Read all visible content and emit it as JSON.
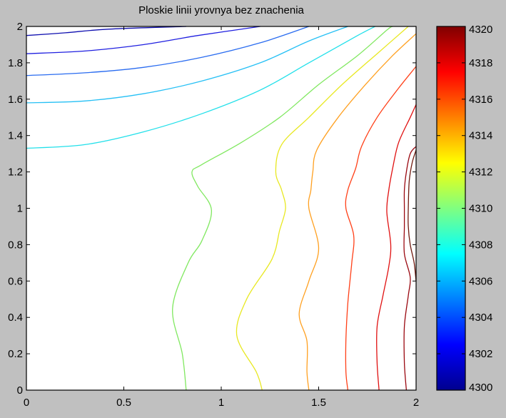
{
  "chart_data": {
    "type": "contour",
    "title": "Ploskie linii yrovnya bez znachenia",
    "xlim": [
      0,
      2
    ],
    "ylim": [
      0,
      2
    ],
    "x_ticks": [
      0,
      0.5,
      1,
      1.5,
      2
    ],
    "x_tick_labels": [
      "0",
      "0.5",
      "1",
      "1.5",
      "2"
    ],
    "y_ticks": [
      0,
      0.2,
      0.4,
      0.6,
      0.8,
      1,
      1.2,
      1.4,
      1.6,
      1.8,
      2
    ],
    "y_tick_labels": [
      "0",
      "0.2",
      "0.4",
      "0.6",
      "0.8",
      "1",
      "1.2",
      "1.4",
      "1.6",
      "1.8",
      "2"
    ],
    "grid": false,
    "colormap": "jet",
    "colorbar": {
      "range": [
        4300,
        4320
      ],
      "ticks": [
        4300,
        4302,
        4304,
        4306,
        4308,
        4310,
        4312,
        4314,
        4316,
        4318,
        4320
      ],
      "tick_labels": [
        "4300",
        "4302",
        "4304",
        "4306",
        "4308",
        "4310",
        "4312",
        "4314",
        "4316",
        "4318",
        "4320"
      ],
      "position": "right"
    },
    "contours": [
      {
        "color": "#1010b0",
        "points": [
          [
            0,
            1.95
          ],
          [
            0.2,
            1.965
          ],
          [
            0.42,
            1.985
          ],
          [
            0.82,
            2
          ]
        ]
      },
      {
        "color": "#2020e0",
        "points": [
          [
            0,
            1.85
          ],
          [
            0.3,
            1.865
          ],
          [
            0.6,
            1.9
          ],
          [
            0.88,
            1.95
          ],
          [
            1.2,
            2
          ]
        ]
      },
      {
        "color": "#2a6cf0",
        "points": [
          [
            0,
            1.73
          ],
          [
            0.3,
            1.745
          ],
          [
            0.6,
            1.775
          ],
          [
            0.9,
            1.83
          ],
          [
            1.2,
            1.91
          ],
          [
            1.45,
            2
          ]
        ]
      },
      {
        "color": "#26c0f5",
        "points": [
          [
            0,
            1.58
          ],
          [
            0.3,
            1.59
          ],
          [
            0.6,
            1.63
          ],
          [
            0.9,
            1.7
          ],
          [
            1.2,
            1.8
          ],
          [
            1.45,
            1.92
          ],
          [
            1.65,
            2
          ]
        ]
      },
      {
        "color": "#22e0ea",
        "points": [
          [
            0,
            1.33
          ],
          [
            0.3,
            1.35
          ],
          [
            0.6,
            1.42
          ],
          [
            0.9,
            1.52
          ],
          [
            1.2,
            1.65
          ],
          [
            1.45,
            1.8
          ],
          [
            1.7,
            1.95
          ],
          [
            1.79,
            2
          ]
        ]
      },
      {
        "color": "#80e860",
        "points": [
          [
            0.82,
            0
          ],
          [
            0.8,
            0.2
          ],
          [
            0.75,
            0.45
          ],
          [
            0.83,
            0.7
          ],
          [
            0.9,
            0.82
          ],
          [
            0.95,
            0.99
          ],
          [
            0.88,
            1.12
          ],
          [
            0.85,
            1.2
          ],
          [
            0.9,
            1.24
          ],
          [
            1.1,
            1.36
          ],
          [
            1.3,
            1.5
          ],
          [
            1.5,
            1.68
          ],
          [
            1.7,
            1.84
          ],
          [
            1.85,
            1.98
          ],
          [
            1.88,
            2
          ]
        ]
      },
      {
        "color": "#e8e820",
        "points": [
          [
            1.21,
            0
          ],
          [
            1.18,
            0.1
          ],
          [
            1.08,
            0.3
          ],
          [
            1.13,
            0.5
          ],
          [
            1.26,
            0.72
          ],
          [
            1.3,
            0.88
          ],
          [
            1.33,
            1
          ],
          [
            1.31,
            1.1
          ],
          [
            1.28,
            1.2
          ],
          [
            1.31,
            1.35
          ],
          [
            1.45,
            1.5
          ],
          [
            1.62,
            1.68
          ],
          [
            1.8,
            1.85
          ],
          [
            1.96,
            2
          ]
        ]
      },
      {
        "color": "#ffa020",
        "points": [
          [
            1.45,
            0
          ],
          [
            1.44,
            0.1
          ],
          [
            1.44,
            0.27
          ],
          [
            1.4,
            0.42
          ],
          [
            1.45,
            0.6
          ],
          [
            1.5,
            0.78
          ],
          [
            1.45,
            1
          ],
          [
            1.46,
            1.1
          ],
          [
            1.47,
            1.2
          ],
          [
            1.49,
            1.32
          ],
          [
            1.6,
            1.5
          ],
          [
            1.74,
            1.68
          ],
          [
            1.88,
            1.84
          ],
          [
            2,
            1.96
          ]
        ]
      },
      {
        "color": "#ff4018",
        "points": [
          [
            1.65,
            0
          ],
          [
            1.64,
            0.1
          ],
          [
            1.64,
            0.28
          ],
          [
            1.65,
            0.48
          ],
          [
            1.67,
            0.7
          ],
          [
            1.68,
            0.85
          ],
          [
            1.64,
            1
          ],
          [
            1.65,
            1.1
          ],
          [
            1.69,
            1.22
          ],
          [
            1.72,
            1.34
          ],
          [
            1.8,
            1.5
          ],
          [
            1.91,
            1.66
          ],
          [
            2,
            1.78
          ]
        ]
      },
      {
        "color": "#e01010",
        "points": [
          [
            1.81,
            0
          ],
          [
            1.8,
            0.15
          ],
          [
            1.8,
            0.35
          ],
          [
            1.83,
            0.52
          ],
          [
            1.86,
            0.68
          ],
          [
            1.87,
            0.8
          ],
          [
            1.85,
            0.98
          ],
          [
            1.86,
            1.1
          ],
          [
            1.88,
            1.22
          ],
          [
            1.91,
            1.36
          ],
          [
            1.97,
            1.5
          ],
          [
            2,
            1.57
          ]
        ]
      },
      {
        "color": "#9a0810",
        "points": [
          [
            1.95,
            0
          ],
          [
            1.94,
            0.15
          ],
          [
            1.94,
            0.35
          ],
          [
            1.96,
            0.52
          ],
          [
            1.97,
            0.62
          ],
          [
            1.94,
            0.75
          ],
          [
            1.94,
            0.9
          ],
          [
            1.94,
            1.0
          ],
          [
            1.94,
            1.1
          ],
          [
            1.95,
            1.2
          ],
          [
            1.97,
            1.3
          ],
          [
            2,
            1.34
          ]
        ]
      },
      {
        "color": "#70190e",
        "points": [
          [
            2,
            0.6
          ],
          [
            1.99,
            0.7
          ],
          [
            1.97,
            0.8
          ],
          [
            1.96,
            0.9
          ],
          [
            1.96,
            1.0
          ],
          [
            1.965,
            1.15
          ],
          [
            1.98,
            1.25
          ],
          [
            2,
            1.32
          ]
        ]
      }
    ]
  }
}
